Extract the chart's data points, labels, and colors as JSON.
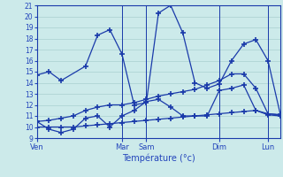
{
  "xlabel": "Température (°c)",
  "bg_color": "#cceaea",
  "line_color": "#1a3aaa",
  "grid_color": "#a0c8c8",
  "axis_color": "#1a3aaa",
  "text_color": "#2244bb",
  "ylim": [
    9,
    21
  ],
  "yticks": [
    9,
    10,
    11,
    12,
    13,
    14,
    15,
    16,
    17,
    18,
    19,
    20,
    21
  ],
  "xlim": [
    0,
    20
  ],
  "day_tick_positions": [
    0,
    7,
    9,
    15,
    19
  ],
  "day_tick_labels": [
    "Ven",
    "Mar",
    "Sam",
    "Dim",
    "Lun"
  ],
  "vline_positions": [
    0,
    7,
    9,
    15,
    19
  ],
  "lines": [
    {
      "x": [
        0,
        1,
        2,
        4,
        5,
        6,
        7,
        8,
        9,
        10,
        11,
        12,
        13,
        14,
        15,
        16,
        17,
        18,
        19,
        20
      ],
      "y": [
        14.7,
        15.0,
        14.2,
        15.5,
        18.3,
        18.8,
        16.6,
        12.0,
        12.2,
        20.3,
        21.0,
        18.5,
        14.0,
        13.5,
        13.9,
        16.0,
        17.5,
        17.9,
        16.0,
        11.2
      ]
    },
    {
      "x": [
        0,
        1,
        2,
        3,
        4,
        5,
        6,
        7,
        8,
        9,
        10,
        11,
        12,
        13,
        14,
        15,
        16,
        17,
        18,
        19,
        20
      ],
      "y": [
        10.5,
        9.8,
        9.5,
        9.8,
        10.8,
        11.0,
        10.0,
        11.0,
        11.5,
        12.3,
        12.5,
        11.8,
        11.0,
        11.0,
        11.0,
        13.3,
        13.5,
        13.8,
        11.5,
        11.2,
        11.1
      ]
    },
    {
      "x": [
        0,
        1,
        2,
        3,
        4,
        5,
        6,
        7,
        8,
        9,
        10,
        11,
        12,
        13,
        14,
        15,
        16,
        17,
        18,
        19,
        20
      ],
      "y": [
        10.0,
        10.0,
        10.0,
        10.0,
        10.1,
        10.2,
        10.3,
        10.4,
        10.5,
        10.6,
        10.7,
        10.8,
        10.9,
        11.0,
        11.1,
        11.2,
        11.3,
        11.4,
        11.5,
        11.1,
        11.0
      ]
    },
    {
      "x": [
        0,
        1,
        2,
        3,
        4,
        5,
        6,
        7,
        8,
        9,
        10,
        11,
        12,
        13,
        14,
        15,
        16,
        17,
        18,
        19,
        20
      ],
      "y": [
        10.5,
        10.6,
        10.8,
        11.0,
        11.5,
        11.8,
        12.0,
        12.0,
        12.2,
        12.5,
        12.8,
        13.0,
        13.2,
        13.4,
        13.8,
        14.2,
        14.8,
        14.8,
        13.5,
        11.2,
        11.1
      ]
    }
  ]
}
